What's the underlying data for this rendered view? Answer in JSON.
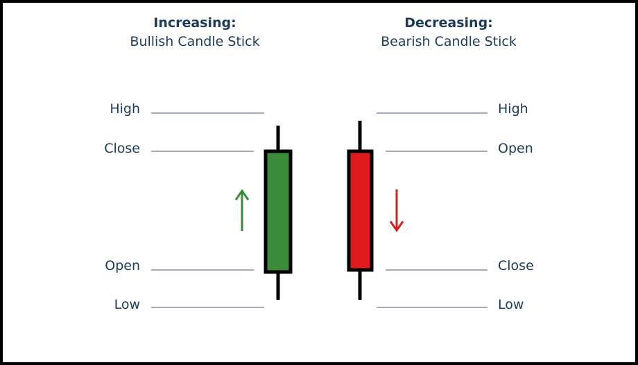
{
  "bullish": {
    "title": "Increasing:",
    "subtitle": "Bullish Candle Stick",
    "labels": {
      "high": "High",
      "close": "Close",
      "open": "Open",
      "low": "Low"
    },
    "body_color": "#3a8c3a",
    "arrow_color": "#3a8c3a",
    "arrow_direction": "up"
  },
  "bearish": {
    "title": "Decreasing:",
    "subtitle": "Bearish Candle Stick",
    "labels": {
      "high": "High",
      "open": "Open",
      "close": "Close",
      "low": "Low"
    },
    "body_color": "#e01b1b",
    "arrow_color": "#d42020",
    "arrow_direction": "down"
  },
  "colors": {
    "text": "#1c3a5e",
    "guide_line": "#6a7a8c",
    "outline": "#000000"
  }
}
